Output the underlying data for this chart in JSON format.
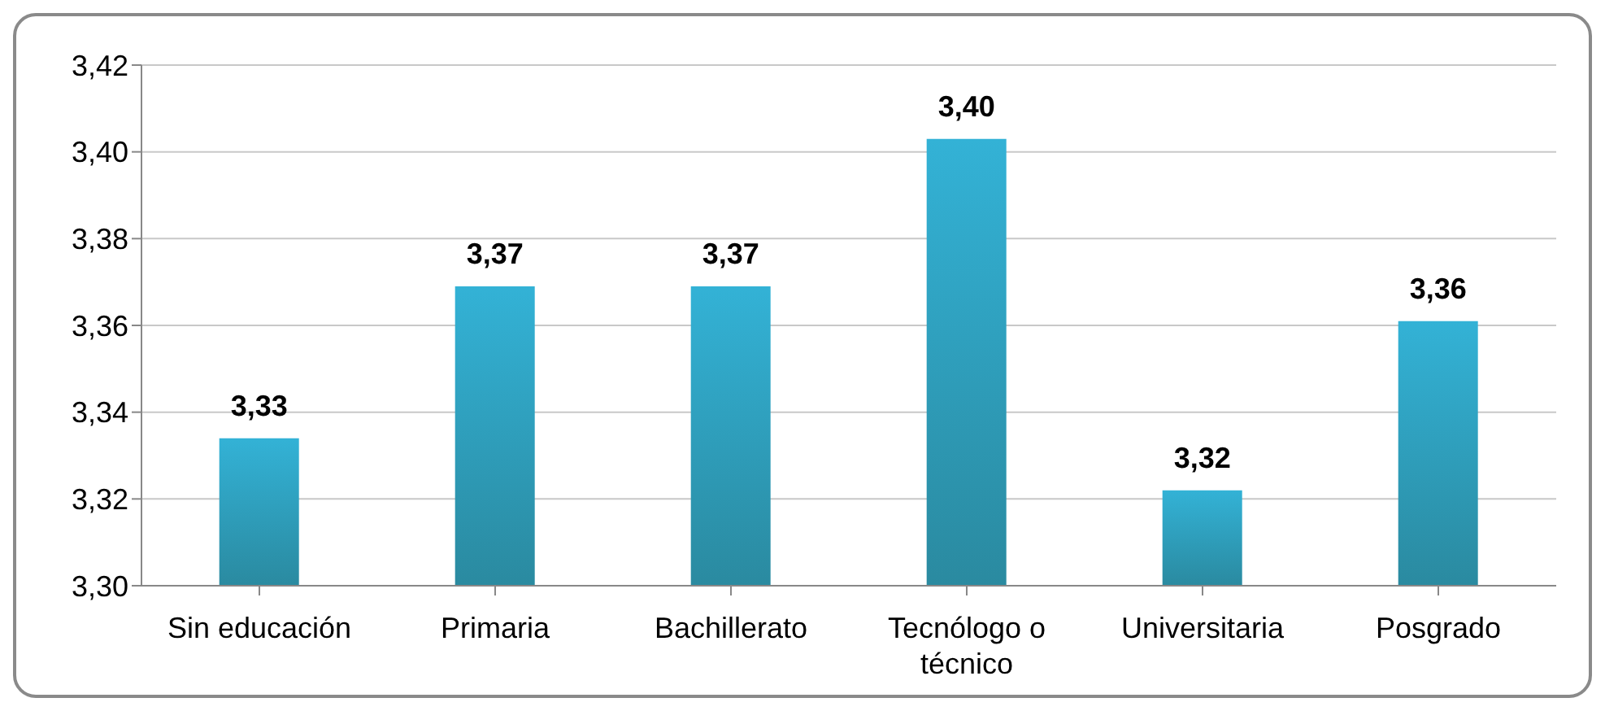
{
  "chart_data": {
    "type": "bar",
    "categories": [
      "Sin educación",
      "Primaria",
      "Bachillerato",
      "Tecnólogo o técnico",
      "Universitaria",
      "Posgrado"
    ],
    "values": [
      3.334,
      3.369,
      3.369,
      3.403,
      3.322,
      3.361
    ],
    "value_labels": [
      "3,33",
      "3,37",
      "3,37",
      "3,40",
      "3,32",
      "3,36"
    ],
    "color": "#33b2d6",
    "ylim": [
      3.3,
      3.42
    ],
    "yticks": [
      {
        "value": 3.3,
        "label": "3,30"
      },
      {
        "value": 3.32,
        "label": "3,32"
      },
      {
        "value": 3.34,
        "label": "3,34"
      },
      {
        "value": 3.36,
        "label": "3,36"
      },
      {
        "value": 3.38,
        "label": "3,38"
      },
      {
        "value": 3.4,
        "label": "3,40"
      },
      {
        "value": 3.42,
        "label": "3,42"
      }
    ],
    "grid": "y"
  }
}
